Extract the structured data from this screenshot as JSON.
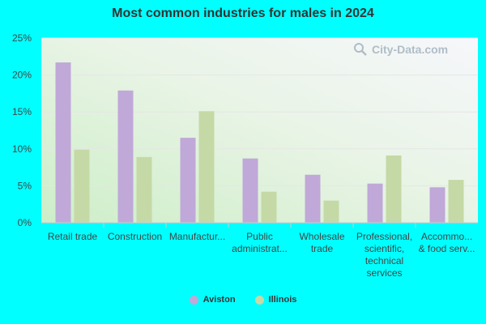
{
  "title": "Most common industries for males in 2024",
  "watermark": "City-Data.com",
  "chart_data": {
    "type": "bar",
    "title": "Most common industries for males in 2024",
    "categories": [
      [
        "Retail trade"
      ],
      [
        "Construction"
      ],
      [
        "Manufactur..."
      ],
      [
        "Public",
        "administrat..."
      ],
      [
        "Wholesale",
        "trade"
      ],
      [
        "Professional,",
        "scientific,",
        "technical",
        "services"
      ],
      [
        "Accommo...",
        "& food serv..."
      ]
    ],
    "series": [
      {
        "name": "Aviston",
        "color": "#c0a8d9",
        "values": [
          21.7,
          17.9,
          11.5,
          8.7,
          6.5,
          5.3,
          4.8
        ]
      },
      {
        "name": "Illinois",
        "color": "#c5d9a6",
        "values": [
          9.9,
          8.9,
          15.1,
          4.2,
          3.0,
          9.1,
          5.8
        ]
      }
    ],
    "yticks": [
      "0%",
      "5%",
      "10%",
      "15%",
      "20%",
      "25%"
    ],
    "ylim": [
      0,
      25
    ],
    "grid": true,
    "legend": "bottom"
  }
}
